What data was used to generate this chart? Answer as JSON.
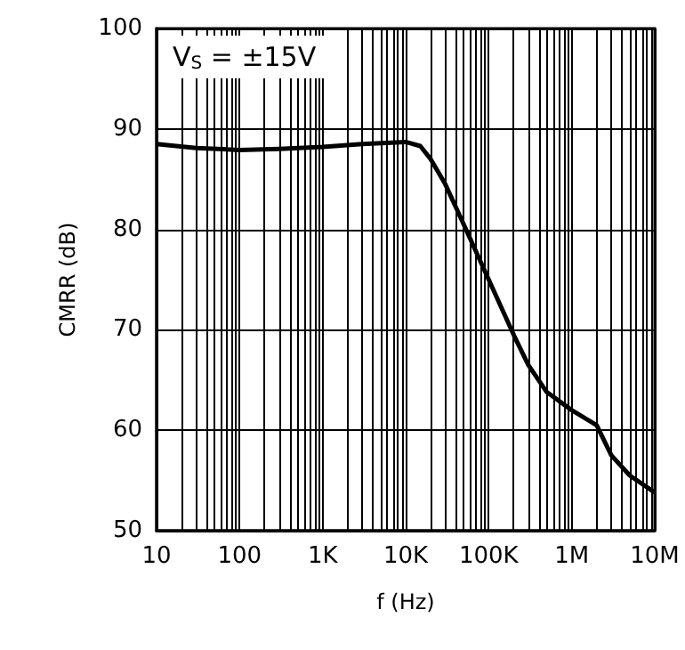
{
  "chart_data": {
    "type": "line",
    "xlabel": "f (Hz)",
    "ylabel": "CMRR (dB)",
    "log": "x",
    "grid": true,
    "marker": "none",
    "line_style": "solid",
    "annotations": [
      "V$_{S}$ = ±15V"
    ],
    "xlim": [
      10,
      10000000
    ],
    "ylim": [
      50,
      100
    ],
    "yticks": [
      50,
      60,
      70,
      80,
      90,
      100
    ],
    "xticks": [
      10,
      {
        "value": 20,
        "label": null
      },
      {
        "value": 30,
        "label": null
      },
      {
        "value": 40,
        "label": null
      },
      {
        "value": 50,
        "label": null
      },
      {
        "value": 60,
        "label": null
      },
      {
        "value": 70,
        "label": null
      },
      {
        "value": 80,
        "label": null
      },
      {
        "value": 90,
        "label": null
      },
      100,
      {
        "value": 200,
        "label": null
      },
      {
        "value": 300,
        "label": null
      },
      {
        "value": 400,
        "label": null
      },
      {
        "value": 500,
        "label": null
      },
      {
        "value": 600,
        "label": null
      },
      {
        "value": 700,
        "label": null
      },
      {
        "value": 800,
        "label": null
      },
      {
        "value": 900,
        "label": null
      },
      {
        "value": 1000,
        "label": "1K"
      },
      {
        "value": 2000,
        "label": null
      },
      {
        "value": 3000,
        "label": null
      },
      {
        "value": 4000,
        "label": null
      },
      {
        "value": 5000,
        "label": null
      },
      {
        "value": 6000,
        "label": null
      },
      {
        "value": 7000,
        "label": null
      },
      {
        "value": 8000,
        "label": null
      },
      {
        "value": 9000,
        "label": null
      },
      {
        "value": 10000,
        "label": "10K"
      },
      {
        "value": 20000,
        "label": null
      },
      {
        "value": 30000,
        "label": null
      },
      {
        "value": 40000,
        "label": null
      },
      {
        "value": 50000,
        "label": null
      },
      {
        "value": 60000,
        "label": null
      },
      {
        "value": 70000,
        "label": null
      },
      {
        "value": 80000,
        "label": null
      },
      {
        "value": 90000,
        "label": null
      },
      {
        "value": 100000,
        "label": "100K"
      },
      {
        "value": 200000,
        "label": null
      },
      {
        "value": 300000,
        "label": null
      },
      {
        "value": 400000,
        "label": null
      },
      {
        "value": 500000,
        "label": null
      },
      {
        "value": 600000,
        "label": null
      },
      {
        "value": 700000,
        "label": null
      },
      {
        "value": 800000,
        "label": null
      },
      {
        "value": 900000,
        "label": null
      },
      {
        "value": 1000000,
        "label": "1M"
      },
      {
        "value": 2000000,
        "label": null
      },
      {
        "value": 3000000,
        "label": null
      },
      {
        "value": 4000000,
        "label": null
      },
      {
        "value": 5000000,
        "label": null
      },
      {
        "value": 6000000,
        "label": null
      },
      {
        "value": 7000000,
        "label": null
      },
      {
        "value": 8000000,
        "label": null
      },
      {
        "value": 9000000,
        "label": null
      },
      {
        "value": 10000000,
        "label": "10M"
      }
    ],
    "series": [
      {
        "color": "#000000",
        "x": [
          10,
          30,
          100,
          300,
          1000,
          3000,
          10000,
          15000,
          20000,
          30000,
          50000,
          100000,
          200000,
          300000,
          500000,
          1000000,
          2000000,
          3000000,
          5000000,
          10000000
        ],
        "values": [
          88.5,
          88.1,
          87.9,
          88.0,
          88.2,
          88.5,
          88.7,
          88.3,
          87,
          84.5,
          80.5,
          75,
          69.5,
          66.5,
          63.8,
          62,
          60.5,
          57.5,
          55.5,
          53.8
        ]
      }
    ]
  }
}
